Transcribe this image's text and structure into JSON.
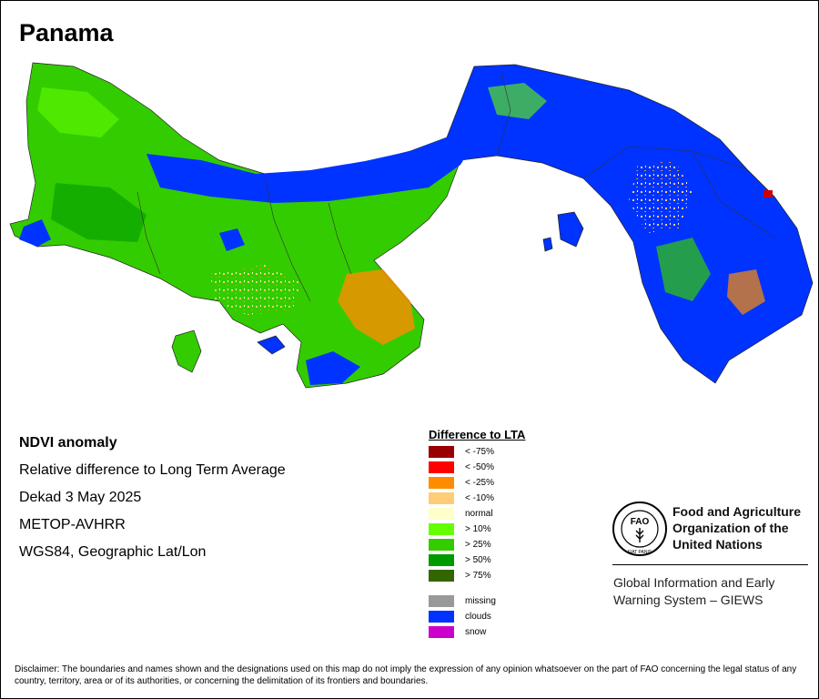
{
  "title": "Panama",
  "info": {
    "product": "NDVI anomaly",
    "description": "Relative difference to Long Term Average",
    "period": "Dekad 3 May 2025",
    "sensor": "METOP-AVHRR",
    "projection": "WGS84, Geographic Lat/Lon"
  },
  "legend": {
    "title": "Difference to LTA",
    "items": [
      {
        "label": "< -75%",
        "color": "#990000"
      },
      {
        "label": "< -50%",
        "color": "#ff0000"
      },
      {
        "label": "< -25%",
        "color": "#ff8c00"
      },
      {
        "label": "< -10%",
        "color": "#ffcc77"
      },
      {
        "label": "normal",
        "color": "#ffffcc"
      },
      {
        "label": "> 10%",
        "color": "#66ff00"
      },
      {
        "label": "> 25%",
        "color": "#33cc00"
      },
      {
        "label": "> 50%",
        "color": "#009900"
      },
      {
        "label": "> 75%",
        "color": "#336600"
      }
    ],
    "extra": [
      {
        "label": "missing",
        "color": "#999999"
      },
      {
        "label": "clouds",
        "color": "#0033ff"
      },
      {
        "label": "snow",
        "color": "#cc00cc"
      }
    ]
  },
  "org": {
    "name_line1": "Food and Agriculture",
    "name_line2": "Organization of the",
    "name_line3": "United Nations",
    "logo_text": "FAO",
    "logo_motto": "FIAT PANIS",
    "system_line1": "Global Information and Early",
    "system_line2": "Warning System – GIEWS"
  },
  "disclaimer": "Disclaimer: The boundaries and names shown and the designations used on this map do not imply the expression of any opinion whatsoever on the part of FAO concerning the legal status of any country, territory, area or of its authorities, or concerning the delimitation of its frontiers and boundaries."
}
